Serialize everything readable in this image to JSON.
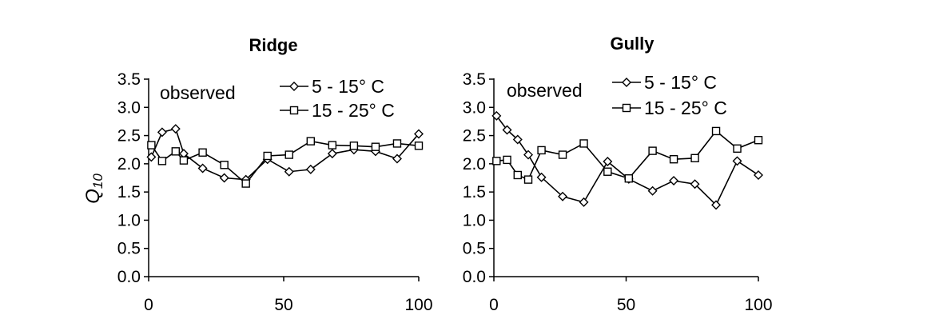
{
  "chart_data": [
    {
      "type": "line",
      "title": "Ridge",
      "ylabel_main": "Q",
      "ylabel_sub": "10",
      "annotation": "observed",
      "xlim": [
        0,
        100
      ],
      "ylim": [
        0,
        3.5
      ],
      "xticks": [
        "0",
        "50",
        "100"
      ],
      "yticks": [
        "0.0",
        "0.5",
        "1.0",
        "1.5",
        "2.0",
        "2.5",
        "3.0",
        "3.5"
      ],
      "legend_position": "top-right",
      "series": [
        {
          "name": "5 - 15° C",
          "marker": "diamond",
          "x": [
            1,
            5,
            10,
            13,
            20,
            28,
            36,
            44,
            52,
            60,
            68,
            76,
            84,
            92,
            100
          ],
          "y": [
            2.12,
            2.56,
            2.62,
            2.18,
            1.92,
            1.75,
            1.72,
            2.08,
            1.86,
            1.9,
            2.18,
            2.25,
            2.22,
            2.09,
            2.53
          ]
        },
        {
          "name": "15 - 25° C",
          "marker": "square",
          "x": [
            1,
            5,
            10,
            13,
            20,
            28,
            36,
            44,
            52,
            60,
            68,
            76,
            84,
            92,
            100
          ],
          "y": [
            2.33,
            2.05,
            2.22,
            2.06,
            2.2,
            1.98,
            1.65,
            2.14,
            2.16,
            2.4,
            2.33,
            2.32,
            2.3,
            2.36,
            2.32
          ]
        }
      ]
    },
    {
      "type": "line",
      "title": "Gully",
      "annotation": "observed",
      "xlim": [
        0,
        100
      ],
      "ylim": [
        0,
        3.5
      ],
      "xticks": [
        "0",
        "50",
        "100"
      ],
      "yticks": [
        "0.0",
        "0.5",
        "1.0",
        "1.5",
        "2.0",
        "2.5",
        "3.0",
        "3.5"
      ],
      "legend_position": "top-right",
      "series": [
        {
          "name": "5 - 15° C",
          "marker": "diamond",
          "x": [
            1,
            5,
            9,
            13,
            18,
            26,
            34,
            43,
            51,
            60,
            68,
            76,
            84,
            92,
            100
          ],
          "y": [
            2.85,
            2.6,
            2.43,
            2.16,
            1.76,
            1.42,
            1.32,
            2.04,
            1.73,
            1.52,
            1.7,
            1.64,
            1.27,
            2.05,
            1.8
          ]
        },
        {
          "name": "15 - 25° C",
          "marker": "square",
          "x": [
            1,
            5,
            9,
            13,
            18,
            26,
            34,
            43,
            51,
            60,
            68,
            76,
            84,
            92,
            100
          ],
          "y": [
            2.05,
            2.07,
            1.8,
            1.72,
            2.24,
            2.16,
            2.36,
            1.86,
            1.74,
            2.23,
            2.08,
            2.1,
            2.58,
            2.27,
            2.42
          ]
        }
      ]
    }
  ]
}
